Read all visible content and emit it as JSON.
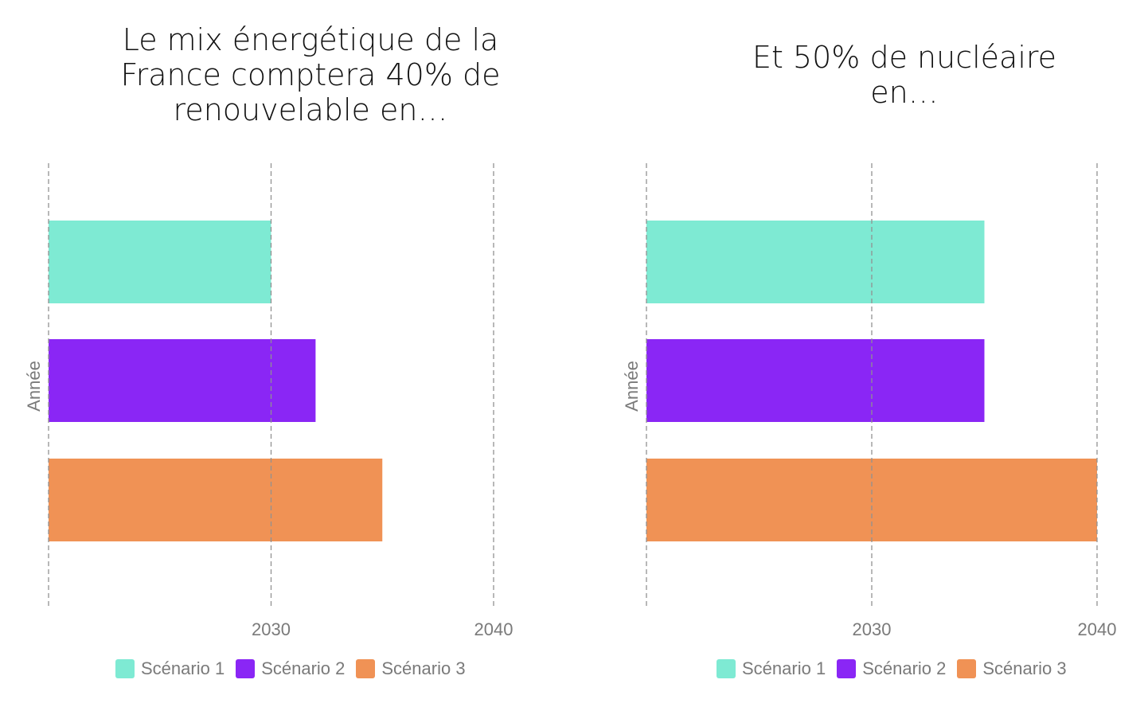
{
  "chart_data": [
    {
      "type": "bar",
      "orientation": "horizontal",
      "title": "Le mix énergétique de la France comptera 40% de renouvelable en…",
      "title_lines": [
        "Le mix énergétique de la",
        "France comptera 40% de",
        "renouvelable en…"
      ],
      "xlabel": "",
      "ylabel": "Année",
      "xlim": [
        2020,
        2040
      ],
      "xticks": [
        2030,
        2040
      ],
      "grid": true,
      "legend_position": "bottom",
      "series": [
        {
          "name": "Scénario 1",
          "value": 2030,
          "color": "#7EEAD3"
        },
        {
          "name": "Scénario 2",
          "value": 2032,
          "color": "#8A26F5"
        },
        {
          "name": "Scénario 3",
          "value": 2035,
          "color": "#F09255"
        }
      ]
    },
    {
      "type": "bar",
      "orientation": "horizontal",
      "title": "Et 50% de nucléaire en…",
      "title_lines": [
        "Et 50% de nucléaire",
        "en…"
      ],
      "xlabel": "",
      "ylabel": "Année",
      "xlim": [
        2020,
        2040
      ],
      "xticks": [
        2030,
        2040
      ],
      "grid": true,
      "legend_position": "bottom",
      "series": [
        {
          "name": "Scénario 1",
          "value": 2035,
          "color": "#7EEAD3"
        },
        {
          "name": "Scénario 2",
          "value": 2035,
          "color": "#8A26F5"
        },
        {
          "name": "Scénario 3",
          "value": 2040,
          "color": "#F09255"
        }
      ]
    }
  ]
}
